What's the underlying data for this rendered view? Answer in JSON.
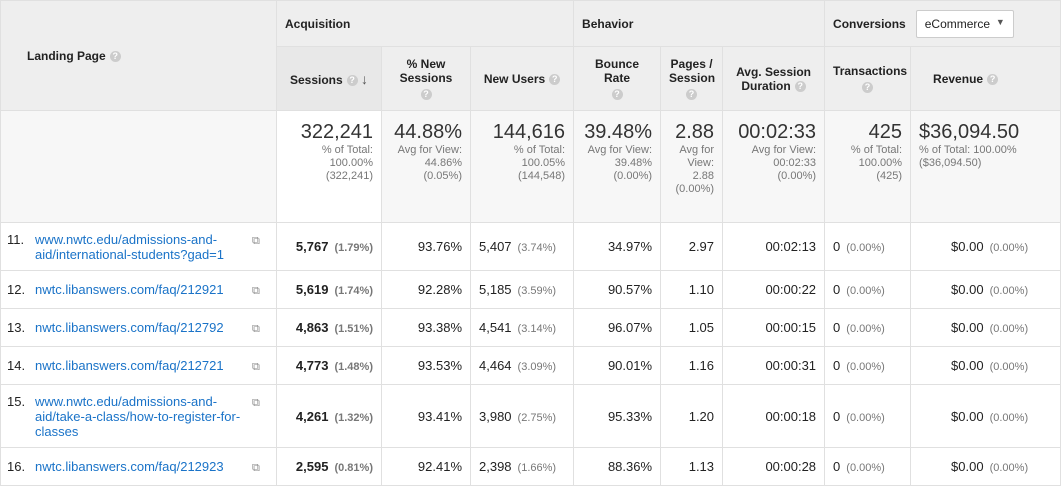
{
  "header": {
    "landing_page": "Landing Page",
    "acquisition": "Acquisition",
    "behavior": "Behavior",
    "conversions": "Conversions",
    "conversions_select": "eCommerce",
    "cols": [
      "Sessions",
      "% New Sessions",
      "New Users",
      "Bounce Rate",
      "Pages / Session",
      "Avg. Session Duration",
      "Transactions",
      "Revenue"
    ]
  },
  "totals": [
    {
      "value": "322,241",
      "l1": "% of Total:",
      "l2": "100.00%",
      "l3": "(322,241)"
    },
    {
      "value": "44.88%",
      "l1": "Avg for View:",
      "l2": "44.86%",
      "l3": "(0.05%)"
    },
    {
      "value": "144,616",
      "l1": "% of Total:",
      "l2": "100.05%",
      "l3": "(144,548)"
    },
    {
      "value": "39.48%",
      "l1": "Avg for View:",
      "l2": "39.48%",
      "l3": "(0.00%)"
    },
    {
      "value": "2.88",
      "l1": "Avg for View:",
      "l2": "2.88",
      "l3": "(0.00%)"
    },
    {
      "value": "00:02:33",
      "l1": "Avg for View:",
      "l2": "00:02:33",
      "l3": "(0.00%)"
    },
    {
      "value": "425",
      "l1": "% of Total:",
      "l2": "100.00%",
      "l3": "(425)"
    },
    {
      "value": "$36,094.50",
      "l1": "% of Total: 100.00%",
      "l2": "($36,094.50)",
      "l3": ""
    }
  ],
  "rows": [
    {
      "idx": "11.",
      "page": "www.nwtc.edu/admissions-and-aid/international-students?gad=1",
      "sessions": "5,767",
      "sess_pct": "(1.79%)",
      "new_sess": "93.76%",
      "new_users": "5,407",
      "nu_pct": "(3.74%)",
      "bounce": "34.97%",
      "pages": "2.97",
      "dur": "00:02:13",
      "trans": "0",
      "trans_pct": "(0.00%)",
      "rev": "$0.00",
      "rev_pct": "(0.00%)"
    },
    {
      "idx": "12.",
      "page": "nwtc.libanswers.com/faq/212921",
      "sessions": "5,619",
      "sess_pct": "(1.74%)",
      "new_sess": "92.28%",
      "new_users": "5,185",
      "nu_pct": "(3.59%)",
      "bounce": "90.57%",
      "pages": "1.10",
      "dur": "00:00:22",
      "trans": "0",
      "trans_pct": "(0.00%)",
      "rev": "$0.00",
      "rev_pct": "(0.00%)"
    },
    {
      "idx": "13.",
      "page": "nwtc.libanswers.com/faq/212792",
      "sessions": "4,863",
      "sess_pct": "(1.51%)",
      "new_sess": "93.38%",
      "new_users": "4,541",
      "nu_pct": "(3.14%)",
      "bounce": "96.07%",
      "pages": "1.05",
      "dur": "00:00:15",
      "trans": "0",
      "trans_pct": "(0.00%)",
      "rev": "$0.00",
      "rev_pct": "(0.00%)"
    },
    {
      "idx": "14.",
      "page": "nwtc.libanswers.com/faq/212721",
      "sessions": "4,773",
      "sess_pct": "(1.48%)",
      "new_sess": "93.53%",
      "new_users": "4,464",
      "nu_pct": "(3.09%)",
      "bounce": "90.01%",
      "pages": "1.16",
      "dur": "00:00:31",
      "trans": "0",
      "trans_pct": "(0.00%)",
      "rev": "$0.00",
      "rev_pct": "(0.00%)"
    },
    {
      "idx": "15.",
      "page": "www.nwtc.edu/admissions-and-aid/take-a-class/how-to-register-for-classes",
      "sessions": "4,261",
      "sess_pct": "(1.32%)",
      "new_sess": "93.41%",
      "new_users": "3,980",
      "nu_pct": "(2.75%)",
      "bounce": "95.33%",
      "pages": "1.20",
      "dur": "00:00:18",
      "trans": "0",
      "trans_pct": "(0.00%)",
      "rev": "$0.00",
      "rev_pct": "(0.00%)"
    },
    {
      "idx": "16.",
      "page": "nwtc.libanswers.com/faq/212923",
      "sessions": "2,595",
      "sess_pct": "(0.81%)",
      "new_sess": "92.41%",
      "new_users": "2,398",
      "nu_pct": "(1.66%)",
      "bounce": "88.36%",
      "pages": "1.13",
      "dur": "00:00:28",
      "trans": "0",
      "trans_pct": "(0.00%)",
      "rev": "$0.00",
      "rev_pct": "(0.00%)"
    }
  ]
}
